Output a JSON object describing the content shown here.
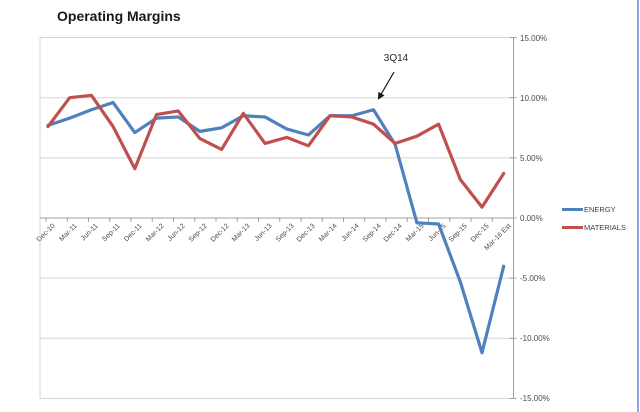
{
  "title": "Operating Margins",
  "annotation": {
    "label": "3Q14"
  },
  "legend": {
    "items": [
      {
        "label": "ENERGY",
        "color": "#4F81BD"
      },
      {
        "label": "MATERIALS",
        "color": "#C0504D"
      }
    ]
  },
  "colors": {
    "energy": "#4F81BD",
    "materials": "#C0504D",
    "gridline": "#D5D5D5",
    "axis": "#A0A0A0",
    "window_border": "#8CA6DE",
    "annotation": "#1a1a1a"
  },
  "chart_data": {
    "type": "line",
    "title": "Operating Margins",
    "categories": [
      "Dec-10",
      "Mar-11",
      "Jun-11",
      "Sep-11",
      "Dec-11",
      "Mar-12",
      "Jun-12",
      "Sep-12",
      "Dec-12",
      "Mar-13",
      "Jun-13",
      "Sep-13",
      "Dec-13",
      "Mar-14",
      "Jun-14",
      "Sep-14",
      "Dec-14",
      "Mar-15",
      "Jun-15",
      "Sep-15",
      "Dec-15",
      "Mar-16 Est"
    ],
    "series": [
      {
        "name": "ENERGY",
        "color": "#4F81BD",
        "values": [
          7.7,
          8.3,
          9.0,
          9.6,
          7.1,
          8.3,
          8.4,
          7.2,
          7.5,
          8.5,
          8.4,
          7.4,
          6.9,
          8.5,
          8.5,
          9.0,
          6.1,
          -0.4,
          -0.5,
          -5.3,
          -11.2,
          -4.0
        ]
      },
      {
        "name": "MATERIALS",
        "color": "#C0504D",
        "values": [
          7.6,
          10.0,
          10.2,
          7.6,
          4.1,
          8.6,
          8.9,
          6.6,
          5.7,
          8.7,
          6.2,
          6.7,
          6.0,
          8.5,
          8.4,
          7.8,
          6.2,
          6.8,
          7.8,
          3.2,
          0.9,
          3.7
        ]
      }
    ],
    "ylim": [
      -15,
      15
    ],
    "yticks": [
      15,
      10,
      5,
      0,
      -5,
      -10,
      -15
    ],
    "ytick_labels": [
      "15.00%",
      "10.00%",
      "5.00%",
      "0.00%",
      "-5.00%",
      "-10.00%",
      "-15.00%"
    ],
    "grid": true,
    "legend_position": "right",
    "annotation": {
      "text": "3Q14",
      "target_series": "ENERGY",
      "target_category": "Sep-14"
    }
  }
}
